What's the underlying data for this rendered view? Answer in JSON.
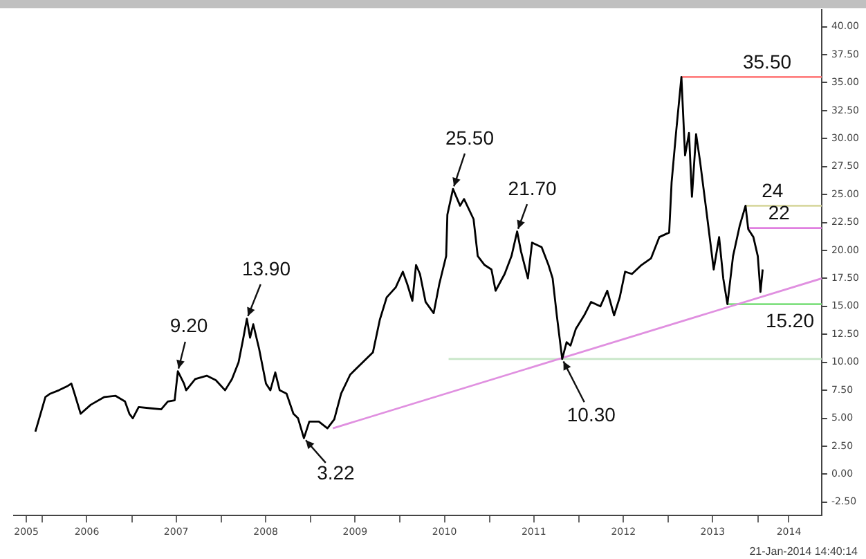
{
  "chart_data": {
    "type": "line",
    "legend": false,
    "grid": false,
    "marker": "none",
    "xlim": [
      "2005-09-06",
      "2014-09-19"
    ],
    "xticks": [
      {
        "value": "2005-10-27",
        "label": "2005"
      },
      {
        "value": "2006-01-01",
        "label": null
      },
      {
        "value": "2006-07-01",
        "label": "2006"
      },
      {
        "value": "2007-01-01",
        "label": null
      },
      {
        "value": "2007-07-01",
        "label": "2007"
      },
      {
        "value": "2008-01-01",
        "label": null
      },
      {
        "value": "2008-07-01",
        "label": "2008"
      },
      {
        "value": "2009-01-01",
        "label": null
      },
      {
        "value": "2009-07-01",
        "label": "2009"
      },
      {
        "value": "2010-01-01",
        "label": null
      },
      {
        "value": "2010-07-01",
        "label": "2010"
      },
      {
        "value": "2011-01-01",
        "label": null
      },
      {
        "value": "2011-07-01",
        "label": "2011"
      },
      {
        "value": "2012-01-01",
        "label": null
      },
      {
        "value": "2012-07-01",
        "label": "2012"
      },
      {
        "value": "2013-01-01",
        "label": null
      },
      {
        "value": "2013-07-01",
        "label": "2013"
      },
      {
        "value": "2014-01-01",
        "label": null
      },
      {
        "value": "2014-05-08",
        "label": "2014"
      }
    ],
    "ylim": [
      -3.7,
      41.5
    ],
    "yticks": [
      {
        "value": -2.5,
        "label": "-2.50"
      },
      {
        "value": 0,
        "label": "0.00"
      },
      {
        "value": 2.5,
        "label": "2.50"
      },
      {
        "value": 5,
        "label": "5.00"
      },
      {
        "value": 7.5,
        "label": "7.50"
      },
      {
        "value": 10,
        "label": "10.00"
      },
      {
        "value": 12.5,
        "label": "12.50"
      },
      {
        "value": 15,
        "label": "15.00"
      },
      {
        "value": 17.5,
        "label": "17.50"
      },
      {
        "value": 20,
        "label": "20.00"
      },
      {
        "value": 22.5,
        "label": "22.50"
      },
      {
        "value": 25,
        "label": "25.00"
      },
      {
        "value": 27.5,
        "label": "27.50"
      },
      {
        "value": 30,
        "label": "30.00"
      },
      {
        "value": 32.5,
        "label": "32.50"
      },
      {
        "value": 35,
        "label": "35.00"
      },
      {
        "value": 37.5,
        "label": "37.50"
      },
      {
        "value": 40,
        "label": "40.00"
      }
    ],
    "series": [
      {
        "color": "#000000",
        "x": [
          "2005-12-03",
          "2005-12-15",
          "2006-01-13",
          "2006-02-02",
          "2006-03-09",
          "2006-04-15",
          "2006-04-29",
          "2006-05-12",
          "2006-06-06",
          "2006-07-17",
          "2006-09-11",
          "2006-10-27",
          "2006-12-04",
          "2006-12-22",
          "2007-01-05",
          "2007-01-29",
          "2007-03-15",
          "2007-05-01",
          "2007-05-28",
          "2007-06-25",
          "2007-07-08",
          "2007-08-02",
          "2007-08-11",
          "2007-09-17",
          "2007-11-03",
          "2007-12-10",
          "2008-01-17",
          "2008-02-14",
          "2008-03-12",
          "2008-03-30",
          "2008-04-15",
          "2008-04-28",
          "2008-05-11",
          "2008-06-04",
          "2008-07-02",
          "2008-07-20",
          "2008-08-09",
          "2008-08-27",
          "2008-09-24",
          "2008-10-22",
          "2008-11-10",
          "2008-12-04",
          "2008-12-26",
          "2009-02-03",
          "2009-03-10",
          "2009-04-07",
          "2009-05-05",
          "2009-06-11",
          "2009-08-06",
          "2009-09-12",
          "2009-10-10",
          "2009-11-07",
          "2009-12-14",
          "2010-01-12",
          "2010-01-30",
          "2010-02-20",
          "2010-03-07",
          "2010-03-23",
          "2010-04-15",
          "2010-05-18",
          "2010-06-10",
          "2010-07-08",
          "2010-07-13",
          "2010-08-05",
          "2010-09-03",
          "2010-09-19",
          "2010-10-28",
          "2010-11-14",
          "2010-12-12",
          "2011-01-09",
          "2011-01-26",
          "2011-03-04",
          "2011-04-01",
          "2011-04-24",
          "2011-05-10",
          "2011-06-07",
          "2011-06-24",
          "2011-08-02",
          "2011-08-30",
          "2011-09-16",
          "2011-10-03",
          "2011-10-25",
          "2011-11-12",
          "2011-11-28",
          "2011-12-20",
          "2012-01-23",
          "2012-02-20",
          "2012-03-29",
          "2012-04-26",
          "2012-05-24",
          "2012-06-16",
          "2012-07-08",
          "2012-08-05",
          "2012-09-13",
          "2012-10-22",
          "2012-11-25",
          "2013-01-04",
          "2013-01-14",
          "2013-02-01",
          "2013-02-23",
          "2013-03-10",
          "2013-03-26",
          "2013-04-07",
          "2013-04-24",
          "2013-05-10",
          "2013-06-07",
          "2013-07-05",
          "2013-07-27",
          "2013-08-13",
          "2013-08-30",
          "2013-09-22",
          "2013-10-19",
          "2013-11-12",
          "2013-11-23",
          "2013-12-14",
          "2014-01-01",
          "2014-01-12",
          "2014-01-21"
        ],
        "values": [
          3.8,
          4.7,
          6.9,
          7.2,
          7.5,
          7.9,
          8.1,
          7.2,
          5.4,
          6.2,
          6.9,
          7.0,
          6.5,
          5.4,
          5.0,
          6.0,
          5.9,
          5.8,
          6.5,
          6.6,
          9.2,
          8.1,
          7.5,
          8.5,
          8.8,
          8.4,
          7.5,
          8.5,
          10.0,
          12.0,
          13.9,
          12.2,
          13.4,
          11.2,
          8.1,
          7.5,
          9.1,
          7.5,
          7.2,
          5.4,
          5.0,
          3.22,
          4.7,
          4.7,
          4.1,
          4.9,
          7.2,
          8.9,
          10.1,
          10.9,
          13.8,
          15.8,
          16.7,
          18.1,
          17.0,
          15.5,
          18.7,
          17.9,
          15.4,
          14.4,
          17.0,
          19.5,
          23.2,
          25.5,
          24.0,
          24.6,
          22.8,
          19.5,
          18.7,
          18.3,
          16.4,
          17.9,
          19.5,
          21.7,
          19.9,
          17.5,
          20.7,
          20.3,
          18.7,
          17.5,
          14.2,
          10.3,
          11.8,
          11.5,
          13.0,
          14.2,
          15.4,
          15.0,
          16.4,
          14.2,
          15.8,
          18.1,
          17.9,
          18.7,
          19.3,
          21.2,
          21.6,
          26.1,
          30.5,
          35.5,
          28.5,
          30.5,
          24.8,
          30.4,
          28.0,
          23.2,
          18.3,
          21.2,
          17.5,
          15.2,
          19.5,
          22.2,
          24.0,
          21.9,
          21.2,
          19.5,
          16.3,
          18.3
        ]
      },
      {
        "color": "#e090e0",
        "x": [
          "2009-04-01",
          "2014-09-19"
        ],
        "values": [
          4.1,
          17.5
        ]
      },
      {
        "color": "#c8e6c8",
        "x": [
          "2010-07-18",
          "2014-09-19"
        ],
        "values": [
          10.3,
          10.3
        ]
      },
      {
        "color": "#ff8080",
        "x": [
          "2013-02-23",
          "2014-09-19"
        ],
        "values": [
          35.5,
          35.5
        ]
      },
      {
        "color": "#d8d8a0",
        "x": [
          "2013-11-12",
          "2014-09-19"
        ],
        "values": [
          24,
          24
        ]
      },
      {
        "color": "#e080e0",
        "x": [
          "2013-11-23",
          "2014-09-19"
        ],
        "values": [
          22,
          22
        ]
      },
      {
        "color": "#80e080",
        "x": [
          "2013-08-30",
          "2014-09-19"
        ],
        "values": [
          15.2,
          15.2
        ]
      }
    ],
    "annotations": [
      {
        "text": "9.20",
        "x": "2007-07-08",
        "y": 9.2
      },
      {
        "text": "13.90",
        "x": "2008-04-15",
        "y": 13.9
      },
      {
        "text": "3.22",
        "x": "2008-12-04",
        "y": 3.22
      },
      {
        "text": "25.50",
        "x": "2010-08-05",
        "y": 25.5
      },
      {
        "text": "21.70",
        "x": "2011-04-24",
        "y": 21.7
      },
      {
        "text": "10.30",
        "x": "2011-10-25",
        "y": 10.3
      },
      {
        "text": "35.50",
        "x": "2014-02-08",
        "y": 35.5
      },
      {
        "text": "24",
        "x": "2014-03-02",
        "y": 24
      },
      {
        "text": "22",
        "x": "2014-03-29",
        "y": 22
      },
      {
        "text": "15.20",
        "x": "2014-05-12",
        "y": 15.2
      },
      "21-Jan-2014 14:40:14"
    ]
  }
}
